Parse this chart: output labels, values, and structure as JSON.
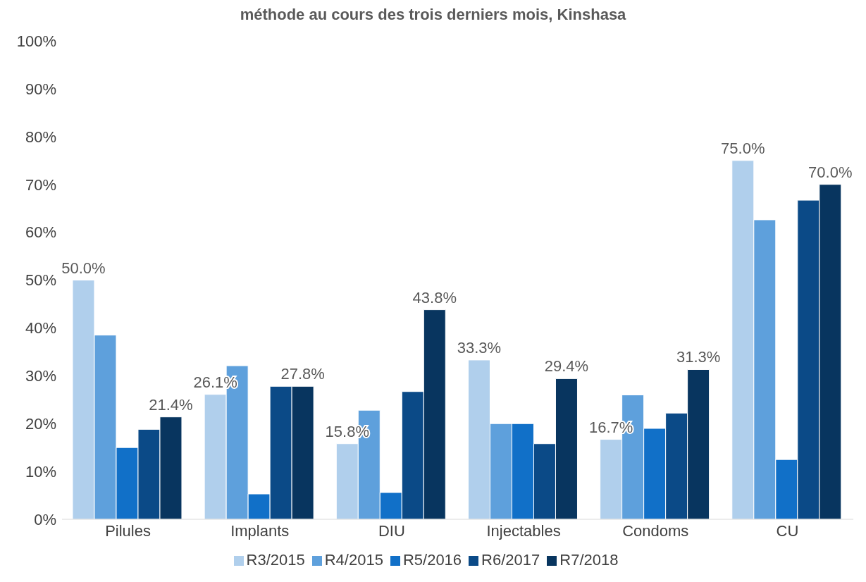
{
  "chart_data": {
    "type": "bar",
    "title": "méthode au cours des trois derniers mois, Kinshasa",
    "categories": [
      "Pilules",
      "Implants",
      "DIU",
      "Injectables",
      "Condoms",
      "CU"
    ],
    "series": [
      {
        "name": "R3/2015",
        "color": "#b0cfec",
        "values": [
          50.0,
          26.1,
          15.8,
          33.3,
          16.7,
          75.0
        ],
        "value_labels": [
          "50.0%",
          "26.1%",
          "15.8%",
          "33.3%",
          "16.7%",
          "75.0%"
        ]
      },
      {
        "name": "R4/2015",
        "color": "#5ea0dc",
        "values": [
          38.5,
          32.1,
          22.8,
          20.0,
          26.0,
          62.6
        ]
      },
      {
        "name": "R5/2016",
        "color": "#1170c8",
        "values": [
          15.0,
          5.3,
          5.6,
          20.0,
          19.0,
          12.5
        ]
      },
      {
        "name": "R6/2017",
        "color": "#0b4a87",
        "values": [
          18.8,
          27.8,
          26.7,
          15.8,
          22.2,
          66.7
        ]
      },
      {
        "name": "R7/2018",
        "color": "#08355f",
        "values": [
          21.4,
          27.8,
          43.8,
          29.4,
          31.3,
          70.0
        ],
        "value_labels": [
          "21.4%",
          "27.8%",
          "43.8%",
          "29.4%",
          "31.3%",
          "70.0%"
        ]
      }
    ],
    "ylim": [
      0,
      100
    ],
    "yticks": [
      {
        "value": 0,
        "label": "0%"
      },
      {
        "value": 10,
        "label": "10%"
      },
      {
        "value": 20,
        "label": "20%"
      },
      {
        "value": 30,
        "label": "30%"
      },
      {
        "value": 40,
        "label": "40%"
      },
      {
        "value": 50,
        "label": "50%"
      },
      {
        "value": 60,
        "label": "60%"
      },
      {
        "value": 70,
        "label": "70%"
      },
      {
        "value": 80,
        "label": "80%"
      },
      {
        "value": 90,
        "label": "90%"
      },
      {
        "value": 100,
        "label": "100%"
      }
    ],
    "grid": false,
    "legend": "bottom"
  }
}
